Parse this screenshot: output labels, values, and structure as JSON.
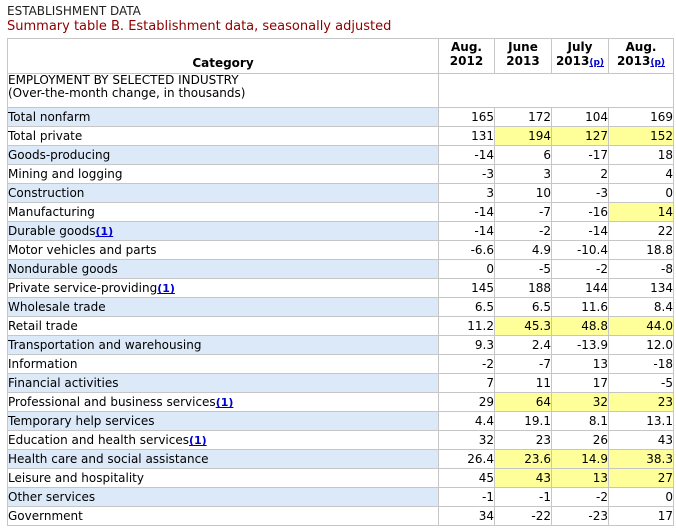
{
  "header": {
    "section_label": "ESTABLISHMENT DATA",
    "title": "Summary table B. Establishment data, seasonally adjusted"
  },
  "table": {
    "category_header": "Category",
    "columns": [
      {
        "line1": "Aug.",
        "line2": "2012",
        "note": ""
      },
      {
        "line1": "June",
        "line2": "2013",
        "note": ""
      },
      {
        "line1": "July",
        "line2": "2013",
        "note": "(p)"
      },
      {
        "line1": "Aug.",
        "line2": "2013",
        "note": "(p)"
      }
    ],
    "section": {
      "line1": "EMPLOYMENT BY SELECTED INDUSTRY",
      "line2": "(Over-the-month change, in thousands)"
    },
    "rows": [
      {
        "label": "Total nonfarm",
        "indent": 1,
        "footnote": "",
        "values": [
          "165",
          "172",
          "104",
          "169"
        ],
        "highlight": [
          false,
          false,
          false,
          false
        ]
      },
      {
        "label": "Total private",
        "indent": 2,
        "footnote": "",
        "values": [
          "131",
          "194",
          "127",
          "152"
        ],
        "highlight": [
          false,
          true,
          true,
          true
        ]
      },
      {
        "label": "Goods-producing",
        "indent": 3,
        "footnote": "",
        "values": [
          "-14",
          "6",
          "-17",
          "18"
        ],
        "highlight": [
          false,
          false,
          false,
          false
        ]
      },
      {
        "label": "Mining and logging",
        "indent": 4,
        "footnote": "",
        "values": [
          "-3",
          "3",
          "2",
          "4"
        ],
        "highlight": [
          false,
          false,
          false,
          false
        ]
      },
      {
        "label": "Construction",
        "indent": 4,
        "footnote": "",
        "values": [
          "3",
          "10",
          "-3",
          "0"
        ],
        "highlight": [
          false,
          false,
          false,
          false
        ]
      },
      {
        "label": "Manufacturing",
        "indent": 4,
        "footnote": "",
        "values": [
          "-14",
          "-7",
          "-16",
          "14"
        ],
        "highlight": [
          false,
          false,
          false,
          true
        ]
      },
      {
        "label": "Durable goods",
        "indent": 5,
        "footnote": "(1)",
        "values": [
          "-14",
          "-2",
          "-14",
          "22"
        ],
        "highlight": [
          false,
          false,
          false,
          false
        ]
      },
      {
        "label": "Motor vehicles and parts",
        "indent": 6,
        "footnote": "",
        "values": [
          "-6.6",
          "4.9",
          "-10.4",
          "18.8"
        ],
        "highlight": [
          false,
          false,
          false,
          false
        ]
      },
      {
        "label": "Nondurable goods",
        "indent": 5,
        "footnote": "",
        "values": [
          "0",
          "-5",
          "-2",
          "-8"
        ],
        "highlight": [
          false,
          false,
          false,
          false
        ]
      },
      {
        "label": "Private service-providing",
        "indent": 3,
        "footnote": "(1)",
        "values": [
          "145",
          "188",
          "144",
          "134"
        ],
        "highlight": [
          false,
          false,
          false,
          false
        ]
      },
      {
        "label": "Wholesale trade",
        "indent": 4,
        "footnote": "",
        "values": [
          "6.5",
          "6.5",
          "11.6",
          "8.4"
        ],
        "highlight": [
          false,
          false,
          false,
          false
        ]
      },
      {
        "label": "Retail trade",
        "indent": 4,
        "footnote": "",
        "values": [
          "11.2",
          "45.3",
          "48.8",
          "44.0"
        ],
        "highlight": [
          false,
          true,
          true,
          true
        ]
      },
      {
        "label": "Transportation and warehousing",
        "indent": 4,
        "footnote": "",
        "values": [
          "9.3",
          "2.4",
          "-13.9",
          "12.0"
        ],
        "highlight": [
          false,
          false,
          false,
          false
        ]
      },
      {
        "label": "Information",
        "indent": 4,
        "footnote": "",
        "values": [
          "-2",
          "-7",
          "13",
          "-18"
        ],
        "highlight": [
          false,
          false,
          false,
          false
        ]
      },
      {
        "label": "Financial activities",
        "indent": 4,
        "footnote": "",
        "values": [
          "7",
          "11",
          "17",
          "-5"
        ],
        "highlight": [
          false,
          false,
          false,
          false
        ]
      },
      {
        "label": "Professional and business services",
        "indent": 4,
        "footnote": "(1)",
        "values": [
          "29",
          "64",
          "32",
          "23"
        ],
        "highlight": [
          false,
          true,
          true,
          true
        ]
      },
      {
        "label": "Temporary help services",
        "indent": 5,
        "footnote": "",
        "values": [
          "4.4",
          "19.1",
          "8.1",
          "13.1"
        ],
        "highlight": [
          false,
          false,
          false,
          false
        ]
      },
      {
        "label": "Education and health services",
        "indent": 4,
        "footnote": "(1)",
        "values": [
          "32",
          "23",
          "26",
          "43"
        ],
        "highlight": [
          false,
          false,
          false,
          false
        ]
      },
      {
        "label": "Health care and social assistance",
        "indent": 5,
        "footnote": "",
        "values": [
          "26.4",
          "23.6",
          "14.9",
          "38.3"
        ],
        "highlight": [
          false,
          true,
          true,
          true
        ]
      },
      {
        "label": "Leisure and hospitality",
        "indent": 4,
        "footnote": "",
        "values": [
          "45",
          "43",
          "13",
          "27"
        ],
        "highlight": [
          false,
          true,
          true,
          true
        ]
      },
      {
        "label": "Other services",
        "indent": 4,
        "footnote": "",
        "values": [
          "-1",
          "-1",
          "-2",
          "0"
        ],
        "highlight": [
          false,
          false,
          false,
          false
        ]
      },
      {
        "label": "Government",
        "indent": 2,
        "footnote": "",
        "values": [
          "34",
          "-22",
          "-23",
          "17"
        ],
        "highlight": [
          false,
          false,
          false,
          false
        ]
      }
    ]
  },
  "colors": {
    "title": "#8b0000",
    "row_tint": "#dce9f9",
    "highlight": "#ffff99",
    "footnote_link": "#0000cc"
  }
}
